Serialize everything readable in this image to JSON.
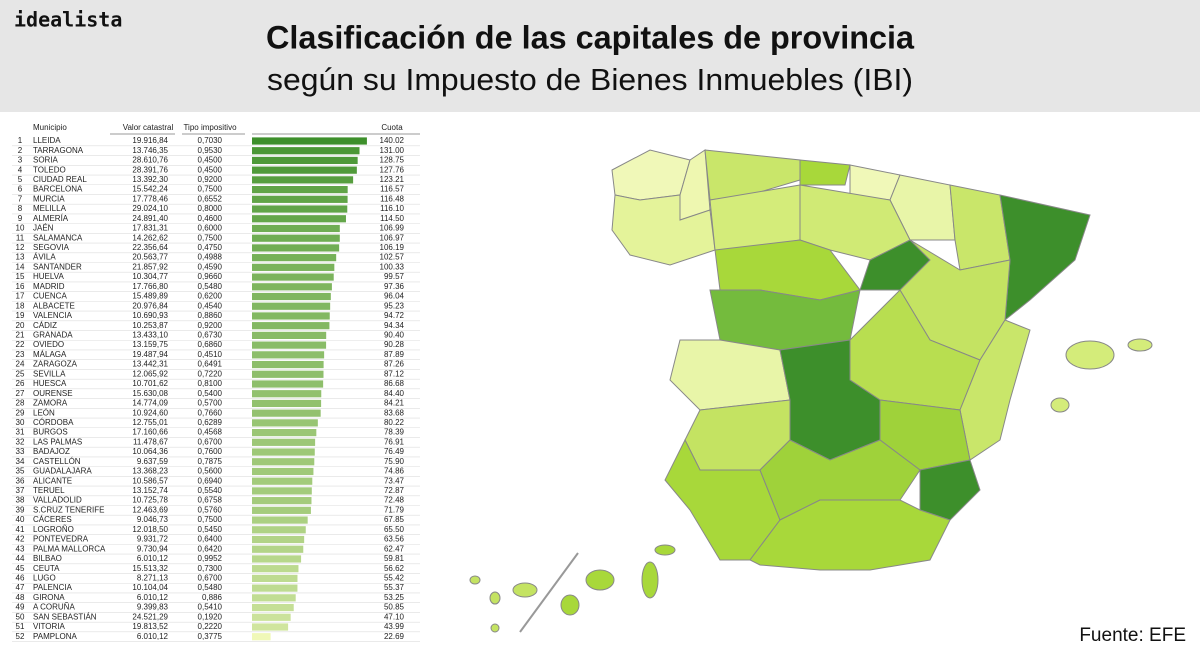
{
  "logo": "idealista",
  "title": "Clasificación de las capitales de provincia",
  "subtitle": "según su Impuesto de Bienes Inmuebles (IBI)",
  "source": "Fuente: EFE",
  "chart_data": {
    "type": "bar",
    "columns": [
      "Municipio",
      "Valor catastral",
      "Tipo impositivo",
      "Cuota"
    ],
    "ranks": [
      1,
      2,
      3,
      4,
      5,
      6,
      7,
      8,
      9,
      10,
      11,
      12,
      13,
      14,
      15,
      16,
      17,
      18,
      19,
      20,
      21,
      22,
      23,
      24,
      25,
      26,
      27,
      28,
      29,
      30,
      31,
      32,
      33,
      34,
      35,
      36,
      37,
      38,
      39,
      40,
      41,
      42,
      43,
      44,
      45,
      46,
      47,
      48,
      49,
      50,
      51,
      52
    ],
    "categories": [
      "LLEIDA",
      "TARRAGONA",
      "SORIA",
      "TOLEDO",
      "CIUDAD REAL",
      "BARCELONA",
      "MURCIA",
      "MELILLA",
      "ALMERÍA",
      "JAÉN",
      "SALAMANCA",
      "SEGOVIA",
      "ÁVILA",
      "SANTANDER",
      "HUELVA",
      "MADRID",
      "CUENCA",
      "ALBACETE",
      "VALENCIA",
      "CÁDIZ",
      "GRANADA",
      "OVIEDO",
      "MÁLAGA",
      "ZARAGOZA",
      "SEVILLA",
      "HUESCA",
      "OURENSE",
      "ZAMORA",
      "LEÓN",
      "CÓRDOBA",
      "BURGOS",
      "LAS PALMAS",
      "BADAJOZ",
      "CASTELLÓN",
      "GUADALAJARA",
      "ALICANTE",
      "TERUEL",
      "VALLADOLID",
      "S.CRUZ TENERIFE",
      "CÁCERES",
      "LOGROÑO",
      "PONTEVEDRA",
      "PALMA MALLORCA",
      "BILBAO",
      "CEUTA",
      "LUGO",
      "PALENCIA",
      "GIRONA",
      "A CORUÑA",
      "SAN SEBASTIÁN",
      "VITORIA",
      "PAMPLONA"
    ],
    "valor_catastral": [
      "19.916,84",
      "13.746,35",
      "28.610,76",
      "28.391,76",
      "13.392,30",
      "15.542,24",
      "17.778,46",
      "29.024,10",
      "24.891,40",
      "17.831,31",
      "14.262,62",
      "22.356,64",
      "20.563,77",
      "21.857,92",
      "10.304,77",
      "17.766,80",
      "15.489,89",
      "20.976,84",
      "10.690,93",
      "10.253,87",
      "13.433,10",
      "13.159,75",
      "19.487,94",
      "13.442,31",
      "12.065,92",
      "10.701,62",
      "15.630,08",
      "14.774,09",
      "10.924,60",
      "12.755,01",
      "17.160,66",
      "11.478,67",
      "10.064,36",
      "9.637,59",
      "13.368,23",
      "10.586,57",
      "13.152,74",
      "10.725,78",
      "12.463,69",
      "9.046,73",
      "12.018,50",
      "9.931,72",
      "9.730,94",
      "6.010,12",
      "15.513,32",
      "8.271,13",
      "10.104,04",
      "6.010,12",
      "9.399,83",
      "24.521,29",
      "19.813,52",
      "6.010,12"
    ],
    "tipo_impositivo": [
      "0,7030",
      "0,9530",
      "0,4500",
      "0,4500",
      "0,9200",
      "0,7500",
      "0,6552",
      "0,8000",
      "0,4600",
      "0,6000",
      "0,7500",
      "0,4750",
      "0,4988",
      "0,4590",
      "0,9660",
      "0,5480",
      "0,6200",
      "0,4540",
      "0,8860",
      "0,9200",
      "0,6730",
      "0,6860",
      "0,4510",
      "0,6491",
      "0,7220",
      "0,8100",
      "0,5400",
      "0,5700",
      "0,7660",
      "0,6289",
      "0,4568",
      "0,6700",
      "0,7600",
      "0,7875",
      "0,5600",
      "0,6940",
      "0,5540",
      "0,6758",
      "0,5760",
      "0,7500",
      "0,5450",
      "0,6400",
      "0,6420",
      "0,9952",
      "0,7300",
      "0,6700",
      "0,5480",
      "0,886",
      "0,5410",
      "0,1920",
      "0,2220",
      "0,3775"
    ],
    "values": [
      140.02,
      131.0,
      128.75,
      127.76,
      123.21,
      116.57,
      116.48,
      116.1,
      114.5,
      106.99,
      106.97,
      106.19,
      102.57,
      100.33,
      99.57,
      97.36,
      96.04,
      95.23,
      94.72,
      94.34,
      90.4,
      90.28,
      87.89,
      87.26,
      87.12,
      86.68,
      84.4,
      84.21,
      83.68,
      80.22,
      78.39,
      76.91,
      76.49,
      75.9,
      74.86,
      73.47,
      72.87,
      72.48,
      71.79,
      67.85,
      65.5,
      63.56,
      62.47,
      59.81,
      56.62,
      55.42,
      55.37,
      53.25,
      50.85,
      47.1,
      43.99,
      22.69
    ],
    "value_labels": [
      "140.02",
      "131.00",
      "128.75",
      "127.76",
      "123.21",
      "116.57",
      "116.48",
      "116.10",
      "114.50",
      "106.99",
      "106.97",
      "106.19",
      "102.57",
      "100.33",
      "99.57",
      "97.36",
      "96.04",
      "95.23",
      "94.72",
      "94.34",
      "90.40",
      "90.28",
      "87.89",
      "87.26",
      "87.12",
      "86.68",
      "84.40",
      "84.21",
      "83.68",
      "80.22",
      "78.39",
      "76.91",
      "76.49",
      "75.90",
      "74.86",
      "73.47",
      "72.87",
      "72.48",
      "71.79",
      "67.85",
      "65.50",
      "63.56",
      "62.47",
      "59.81",
      "56.62",
      "55.42",
      "55.37",
      "53.25",
      "50.85",
      "47.10",
      "43.99",
      "22.69"
    ],
    "xlim": [
      0,
      145
    ],
    "color_scale": [
      "#f0f8b8",
      "#3d8f2b"
    ]
  }
}
